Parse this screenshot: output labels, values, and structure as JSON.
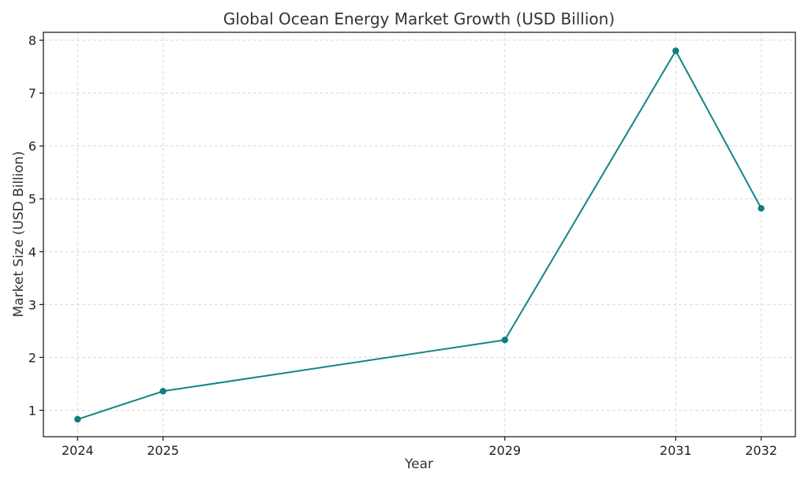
{
  "chart_data": {
    "type": "line",
    "title": "Global Ocean Energy Market Growth (USD Billion)",
    "xlabel": "Year",
    "ylabel": "Market Size (USD Billion)",
    "x": [
      2024,
      2025,
      2029,
      2031,
      2032
    ],
    "series": [
      {
        "values": [
          0.83,
          1.36,
          2.33,
          7.8,
          4.82
        ]
      }
    ],
    "xlim": [
      2023.6,
      2032.4
    ],
    "ylim": [
      0.5,
      8.15
    ],
    "yticks": [
      1,
      2,
      3,
      4,
      5,
      6,
      7,
      8
    ],
    "xticks": [
      "2024",
      "2025",
      "2029",
      "2031",
      "2032"
    ],
    "grid": true,
    "line_color": "#138484",
    "marker_color": "#0d7f7f"
  }
}
